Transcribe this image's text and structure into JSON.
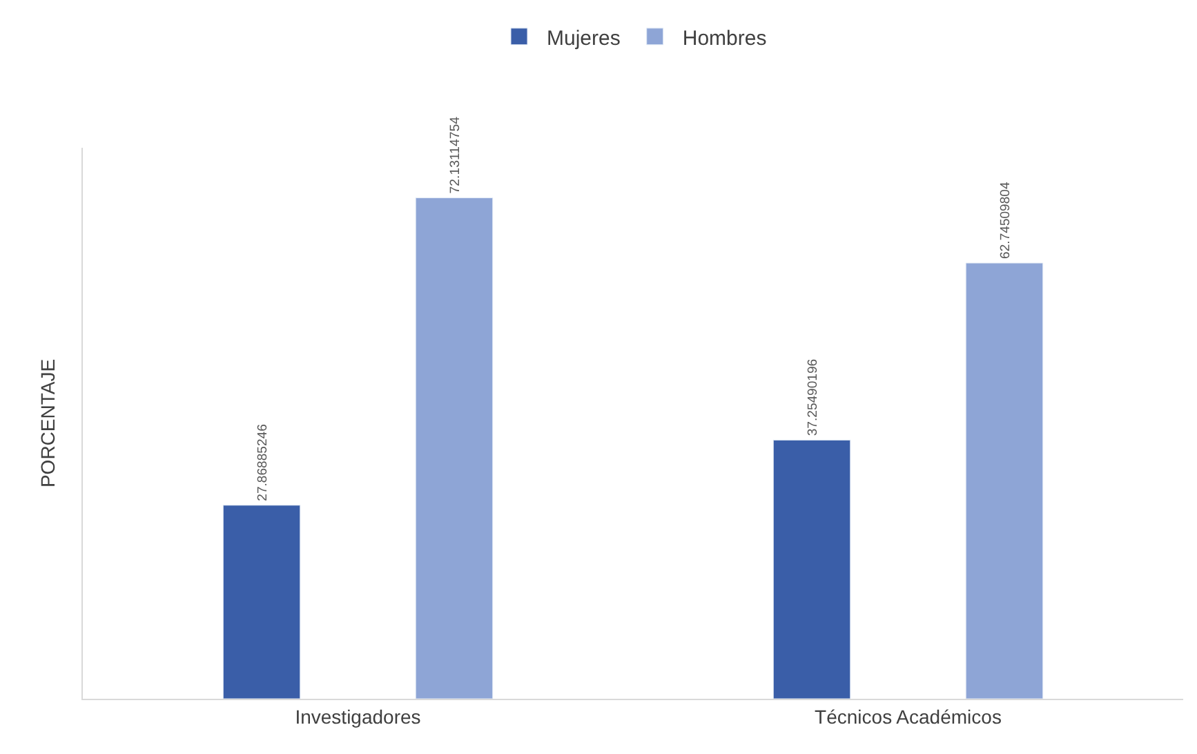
{
  "chart_data": {
    "type": "bar",
    "ylabel": "PORCENTAJE",
    "categories": [
      "Investigadores",
      "Técnicos Académicos"
    ],
    "series": [
      {
        "name": "Mujeres",
        "color": "#3a5ea8",
        "values": [
          27.86885246,
          37.25490196
        ]
      },
      {
        "name": "Hombres",
        "color": "#8ea5d6",
        "values": [
          72.13114754,
          62.74509804
        ]
      }
    ],
    "data_labels": true,
    "legend": "top"
  }
}
